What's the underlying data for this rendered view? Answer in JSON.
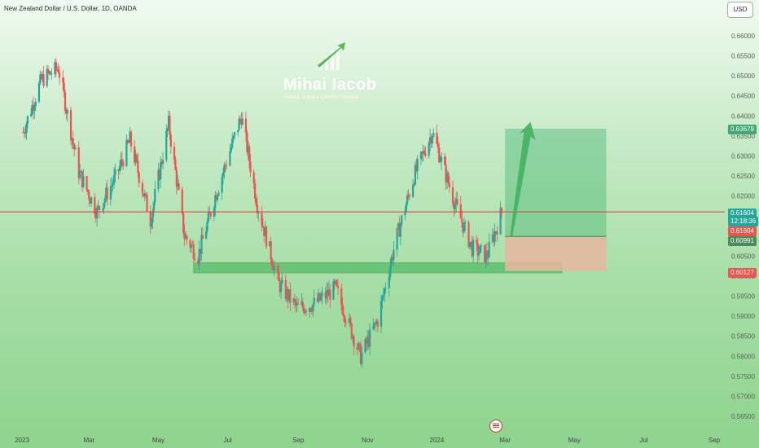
{
  "header": {
    "title": "New Zealand Dollar / U.S. Dollar, 1D, OANDA",
    "currency_button": "USD"
  },
  "logo": {
    "name": "Mihai Iacob",
    "subtitle": "FOREX, GOLD & CRYPTO TRADER"
  },
  "price_tags": {
    "target": "0.63679",
    "current_price": "0.61604",
    "countdown": "12:18:36",
    "current_price_2": "0.61604",
    "entry": "0.60991",
    "stop": "0.60127"
  },
  "colors": {
    "up": "#26a69a",
    "down": "#ef5350",
    "current_line": "#e53935",
    "profit_zone": "#4cb877",
    "loss_zone": "#e6b6a0"
  },
  "chart_data": {
    "type": "candlestick",
    "title": "New Zealand Dollar / U.S. Dollar, 1D, OANDA",
    "y_ticks": [
      "0.66000",
      "0.65500",
      "0.65000",
      "0.64500",
      "0.64000",
      "0.63500",
      "0.63000",
      "0.62500",
      "0.62000",
      "0.61500",
      "0.61000",
      "0.60500",
      "0.60000",
      "0.59500",
      "0.59000",
      "0.58500",
      "0.58000",
      "0.57500",
      "0.57000",
      "0.56500"
    ],
    "x_ticks": [
      "2023",
      "Mar",
      "May",
      "Jul",
      "Sep",
      "Nov",
      "2024",
      "Mar",
      "May",
      "Jul",
      "Sep"
    ],
    "ylim": [
      0.5625,
      0.6655
    ],
    "price_path": [
      [
        "2023-01-02",
        0.636
      ],
      [
        "2023-01-18",
        0.649
      ],
      [
        "2023-02-02",
        0.652
      ],
      [
        "2023-02-20",
        0.626
      ],
      [
        "2023-03-08",
        0.616
      ],
      [
        "2023-03-25",
        0.625
      ],
      [
        "2023-04-06",
        0.634
      ],
      [
        "2023-04-24",
        0.614
      ],
      [
        "2023-05-10",
        0.638
      ],
      [
        "2023-05-24",
        0.61
      ],
      [
        "2023-06-05",
        0.605
      ],
      [
        "2023-06-20",
        0.62
      ],
      [
        "2023-07-13",
        0.64
      ],
      [
        "2023-07-27",
        0.618
      ],
      [
        "2023-08-15",
        0.598
      ],
      [
        "2023-08-31",
        0.592
      ],
      [
        "2023-09-15",
        0.593
      ],
      [
        "2023-10-04",
        0.597
      ],
      [
        "2023-10-26",
        0.58
      ],
      [
        "2023-11-10",
        0.589
      ],
      [
        "2023-11-25",
        0.608
      ],
      [
        "2023-12-12",
        0.625
      ],
      [
        "2023-12-28",
        0.636
      ],
      [
        "2024-01-17",
        0.618
      ],
      [
        "2024-02-01",
        0.607
      ],
      [
        "2024-02-14",
        0.605
      ],
      [
        "2024-02-27",
        0.616
      ]
    ],
    "current_price": 0.61604,
    "support_zone": {
      "from": 0.6008,
      "to": 0.6033
    },
    "position": {
      "type": "long",
      "entry": 0.60991,
      "target": 0.63679,
      "stop": 0.60127
    },
    "grid": false,
    "legend": "none"
  }
}
